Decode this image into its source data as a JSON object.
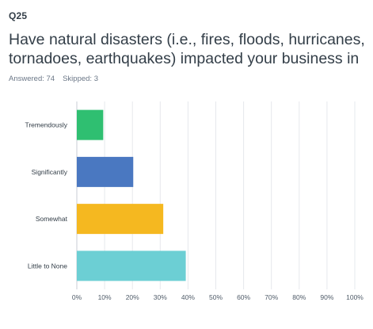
{
  "question": {
    "number": "Q25",
    "title_line1": "Have natural disasters (i.e., fires, floods, hurricanes,",
    "title_line2": "tornadoes, earthquakes) impacted your business in"
  },
  "stats": {
    "answered": "Answered: 74",
    "skipped": "Skipped: 3"
  },
  "chart_data": {
    "type": "bar",
    "orientation": "horizontal",
    "categories": [
      "Tremendously",
      "Significantly",
      "Somewhat",
      "Little to None"
    ],
    "values": [
      9.5,
      20.3,
      31.1,
      39.2
    ],
    "colors": [
      "#2fbf71",
      "#4a78c1",
      "#f5b820",
      "#6ccfd4"
    ],
    "xlim": [
      0,
      100
    ],
    "x_ticks": [
      "0%",
      "10%",
      "20%",
      "30%",
      "40%",
      "50%",
      "60%",
      "70%",
      "80%",
      "90%",
      "100%"
    ],
    "grid": true,
    "title": "",
    "xlabel": "",
    "ylabel": ""
  }
}
